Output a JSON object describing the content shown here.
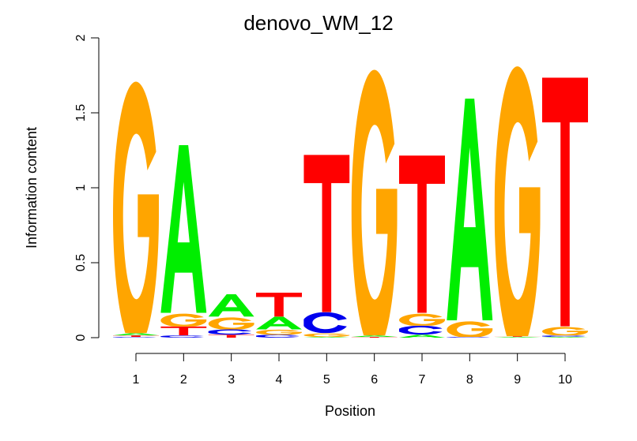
{
  "chart_data": {
    "type": "sequence-logo",
    "title": "denovo_WM_12",
    "xlabel": "Position",
    "ylabel": "Information content",
    "ylim": [
      0,
      2
    ],
    "yticks": [
      "0",
      "0.5",
      "1",
      "1.5",
      "2"
    ],
    "categories": [
      "1",
      "2",
      "3",
      "4",
      "5",
      "6",
      "7",
      "8",
      "9",
      "10"
    ],
    "colors": {
      "A": "#00ee00",
      "C": "#0000ee",
      "G": "#ffa500",
      "T": "#ff0000"
    },
    "stacks": [
      [
        [
          "C",
          0.005
        ],
        [
          "T",
          0.01
        ],
        [
          "A",
          0.015
        ],
        [
          "G",
          1.78
        ]
      ],
      [
        [
          "C",
          0.015
        ],
        [
          "T",
          0.06
        ],
        [
          "G",
          0.09
        ],
        [
          "A",
          1.12
        ]
      ],
      [
        [
          "T",
          0.02
        ],
        [
          "C",
          0.035
        ],
        [
          "G",
          0.085
        ],
        [
          "A",
          0.15
        ]
      ],
      [
        [
          "C",
          0.02
        ],
        [
          "G",
          0.035
        ],
        [
          "A",
          0.085
        ],
        [
          "T",
          0.16
        ]
      ],
      [
        [
          "A",
          0.005
        ],
        [
          "G",
          0.025
        ],
        [
          "C",
          0.14
        ],
        [
          "T",
          1.05
        ]
      ],
      [
        [
          "T",
          0.005
        ],
        [
          "A",
          0.01
        ],
        [
          "G",
          1.88
        ]
      ],
      [
        [
          "A",
          0.02
        ],
        [
          "C",
          0.06
        ],
        [
          "G",
          0.085
        ],
        [
          "T",
          1.05
        ]
      ],
      [
        [
          "C",
          0.005
        ],
        [
          "G",
          0.11
        ],
        [
          "A",
          1.48
        ]
      ],
      [
        [
          "A",
          0.005
        ],
        [
          "T",
          0.005
        ],
        [
          "G",
          1.91
        ]
      ],
      [
        [
          "A",
          0.005
        ],
        [
          "C",
          0.01
        ],
        [
          "G",
          0.06
        ],
        [
          "T",
          1.66
        ]
      ]
    ]
  }
}
